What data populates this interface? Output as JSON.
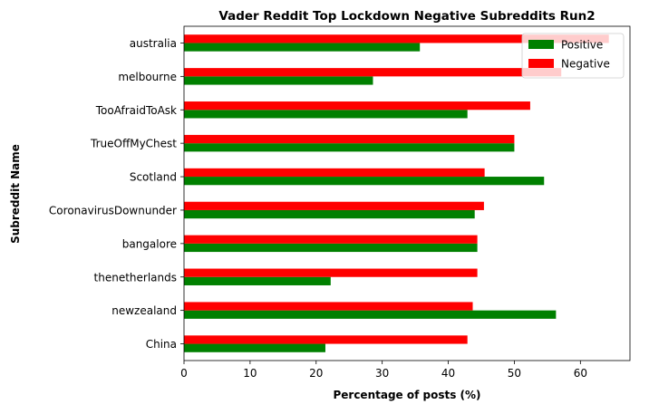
{
  "chart_data": {
    "type": "bar",
    "orientation": "horizontal",
    "title": "Vader Reddit Top Lockdown Negative Subreddits Run2",
    "xlabel": "Percentage of posts (%)",
    "ylabel": "Subreddit Name",
    "xlim": [
      0,
      67.5
    ],
    "xticks": [
      0,
      10,
      20,
      30,
      40,
      50,
      60
    ],
    "grid": false,
    "legend_position": "top-right",
    "categories": [
      "China",
      "newzealand",
      "thenetherlands",
      "bangalore",
      "CoronavirusDownunder",
      "Scotland",
      "TrueOffMyChest",
      "TooAfraidToAsk",
      "melbourne",
      "australia"
    ],
    "series": [
      {
        "name": "Positive",
        "color": "#008000",
        "values": [
          21.4,
          56.3,
          22.2,
          44.4,
          44.0,
          54.5,
          50.0,
          42.9,
          28.6,
          35.7
        ]
      },
      {
        "name": "Negative",
        "color": "#ff0000",
        "values": [
          42.9,
          43.7,
          44.4,
          44.4,
          45.4,
          45.5,
          50.0,
          52.4,
          57.1,
          64.3
        ]
      }
    ]
  }
}
